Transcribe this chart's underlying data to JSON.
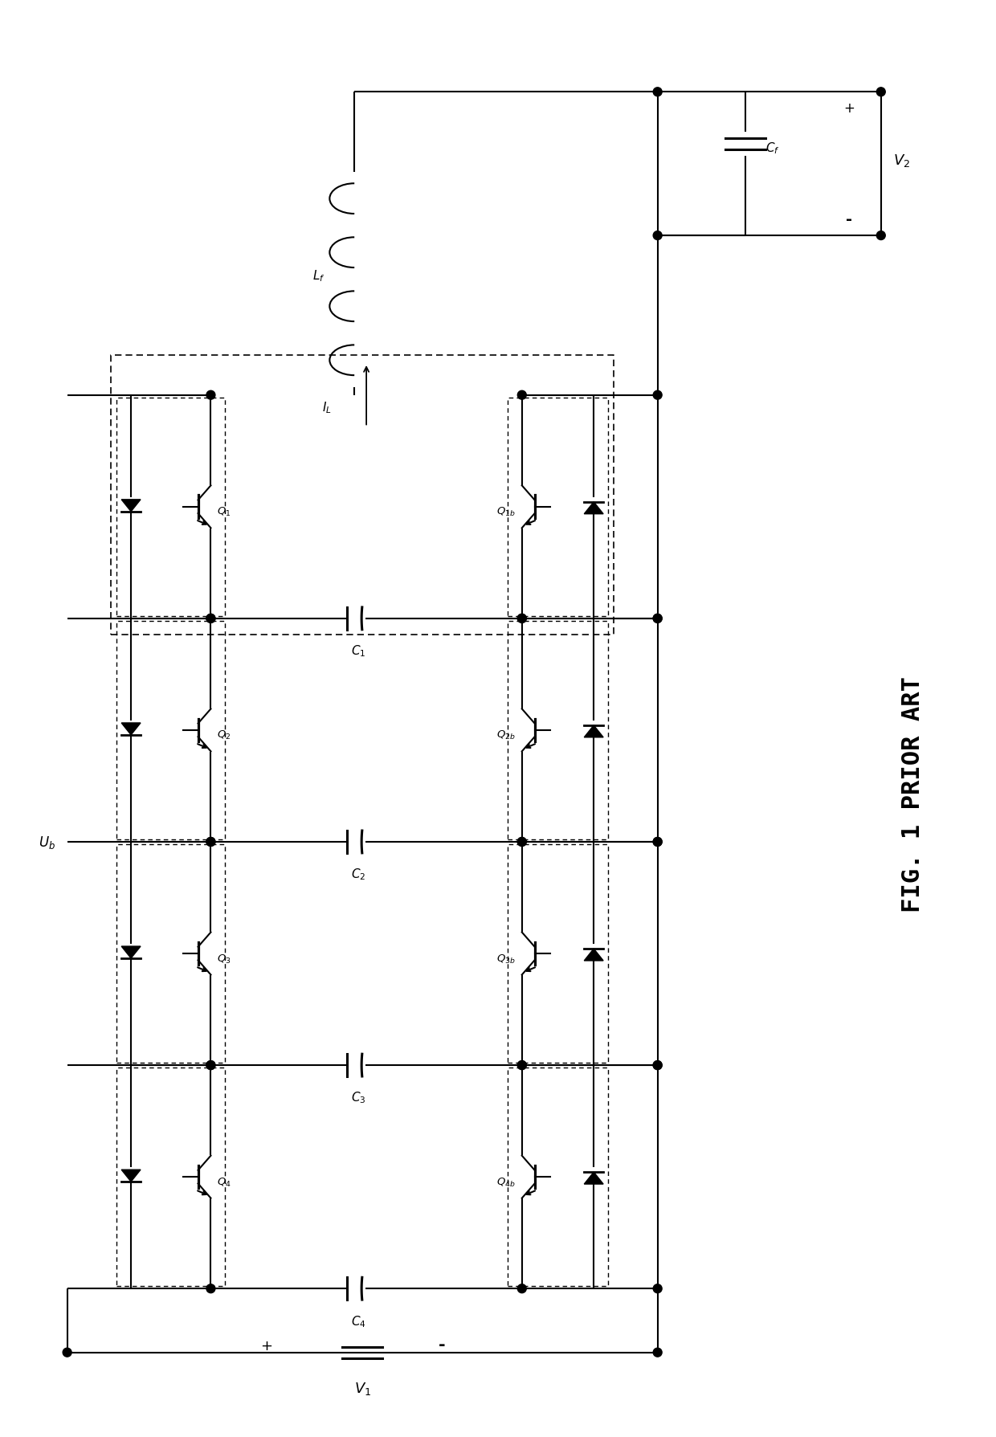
{
  "background_color": "#ffffff",
  "line_color": "#000000",
  "fig_width": 12.4,
  "fig_height": 17.9,
  "lw": 1.5,
  "dlw": 1.2,
  "s": 3.8,
  "xLL": 8,
  "xLd": 16,
  "xLS": 26,
  "xCap": 44,
  "xRS": 65,
  "xRd": 74,
  "xRR": 82,
  "yn0": 130,
  "yn1": 102,
  "yn2": 74,
  "yn3": 46,
  "yn4": 18,
  "yBot_rail": 10,
  "yTop_rail": 168,
  "xLf_c": 44,
  "xCf_c": 93,
  "xV2x": 110,
  "Q_labels": [
    "Q_1",
    "Q_2",
    "Q_3",
    "Q_4"
  ],
  "Qb_labels": [
    "Q_{1b}",
    "Q_{2b}",
    "Q_{3b}",
    "Q_{4b}"
  ],
  "C_labels": [
    "C_1",
    "C_2",
    "C_3",
    "C_4"
  ],
  "fig_label": "FIG. 1 PRIOR ART"
}
